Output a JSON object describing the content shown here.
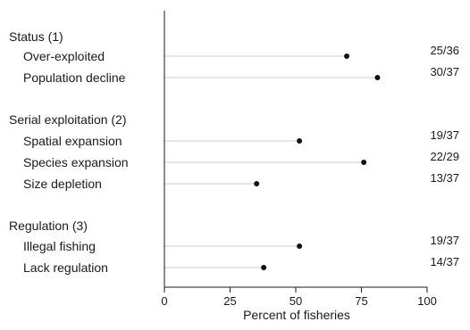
{
  "chart_data": {
    "type": "lollipop",
    "groups": [
      {
        "label": "Status (1)",
        "items": [
          {
            "label": "Over-exploited",
            "value": 69.4,
            "ratio": "25/36"
          },
          {
            "label": "Population decline",
            "value": 81.1,
            "ratio": "30/37"
          }
        ]
      },
      {
        "label": "Serial exploitation (2)",
        "items": [
          {
            "label": "Spatial expansion",
            "value": 51.4,
            "ratio": "19/37"
          },
          {
            "label": "Species expansion",
            "value": 75.9,
            "ratio": "22/29"
          },
          {
            "label": "Size depletion",
            "value": 35.1,
            "ratio": "13/37"
          }
        ]
      },
      {
        "label": "Regulation (3)",
        "items": [
          {
            "label": "Illegal fishing",
            "value": 51.4,
            "ratio": "19/37"
          },
          {
            "label": "Lack regulation",
            "value": 37.8,
            "ratio": "14/37"
          }
        ]
      }
    ],
    "x_ticks": [
      0,
      25,
      50,
      75,
      100
    ],
    "xlim": [
      0,
      100
    ],
    "xlabel": "Percent of fisheries",
    "grid": false,
    "legend": "none"
  },
  "colors": {
    "axis": "#1a1a1a",
    "stem": "#cccccc",
    "dot": "#111111",
    "text": "#1a1a1a"
  }
}
